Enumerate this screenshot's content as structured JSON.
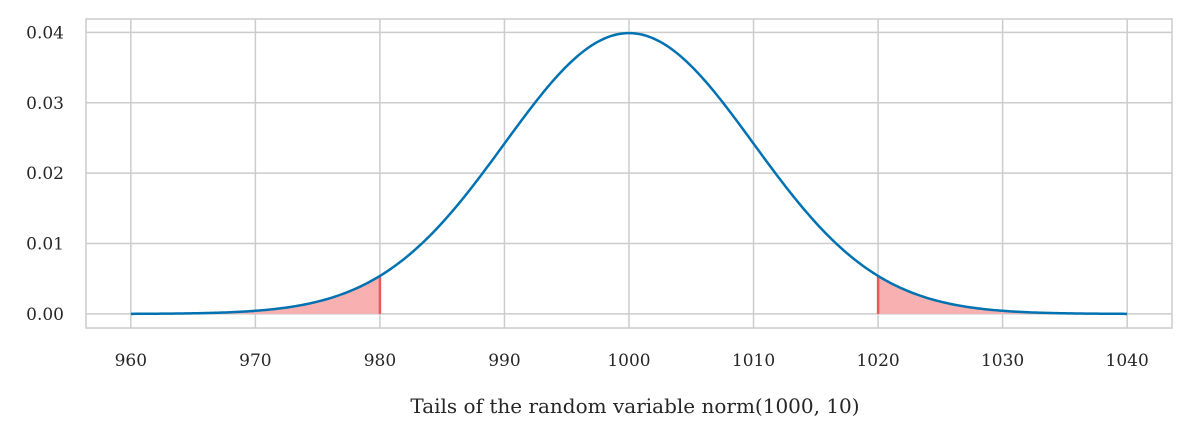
{
  "chart_data": {
    "type": "line",
    "title": "",
    "xlabel": "Tails of the random variable norm(1000, 10)",
    "ylabel": "",
    "distribution": {
      "name": "normal",
      "mean": 1000,
      "sd": 10
    },
    "x_range": [
      960,
      1040
    ],
    "xlim": [
      956.4,
      1043.6
    ],
    "ylim": [
      -0.002,
      0.0419
    ],
    "x_ticks": [
      "960",
      "970",
      "980",
      "990",
      "1000",
      "1010",
      "1020",
      "1030",
      "1040"
    ],
    "y_ticks": [
      "0.00",
      "0.01",
      "0.02",
      "0.03",
      "0.04"
    ],
    "shaded_tails": [
      {
        "from": 960,
        "to": 980
      },
      {
        "from": 1020,
        "to": 1040
      }
    ],
    "grid": true,
    "colors": {
      "line": "#0072b2",
      "tail_fill": "#f8b0b0",
      "tail_edge": "#e55b5b",
      "grid": "#cccccc",
      "frame": "#cccccc"
    }
  }
}
